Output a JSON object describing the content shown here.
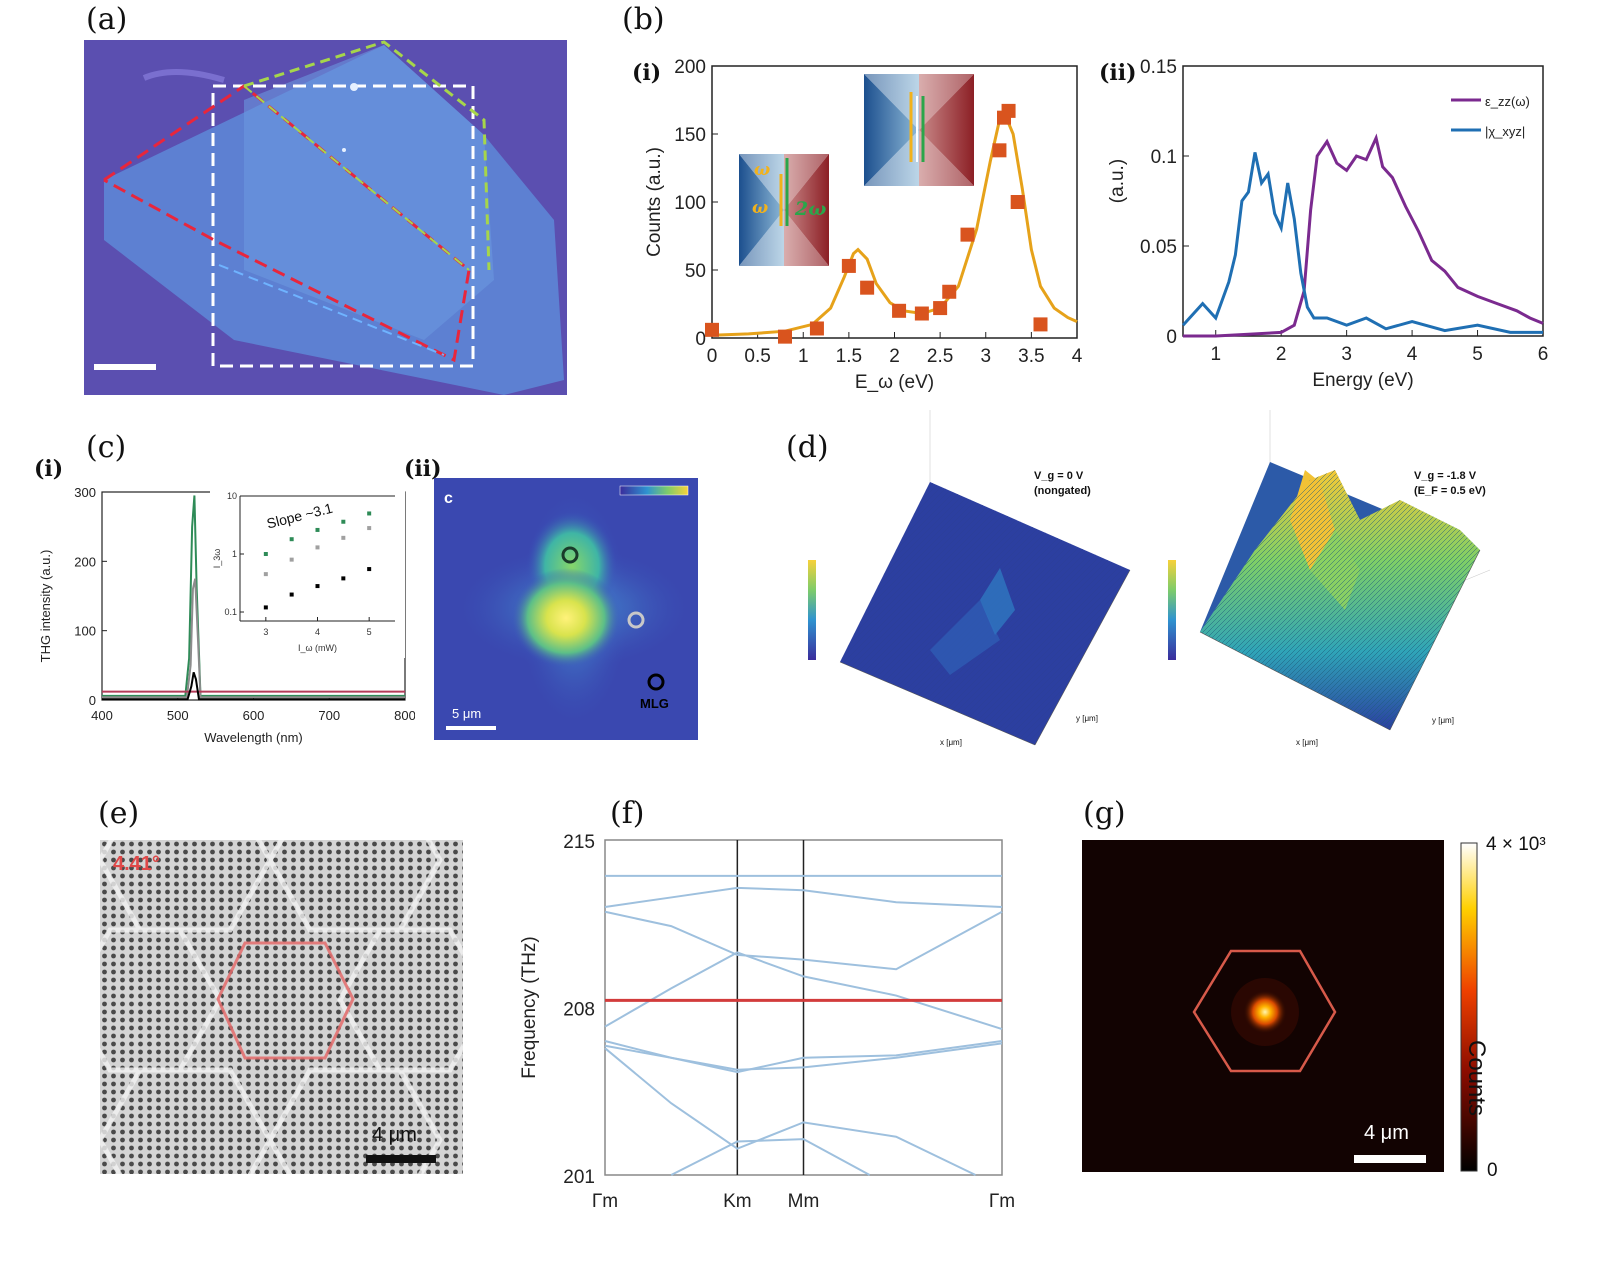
{
  "panels": {
    "a": {
      "label": "(a)"
    },
    "b": {
      "label": "(b)",
      "i_label": "(i)",
      "ii_label": "(ii)",
      "inset_omega": "ω",
      "inset_omega2": "ω",
      "inset_2omega": "2ω"
    },
    "c": {
      "label": "(c)",
      "i_label": "(i)",
      "ii_label": "(ii)",
      "inset_slope": "Slope ~3.1",
      "inset_xlabel": "I_ω (mW)",
      "inset_ylabel": "I_3ω",
      "map_letter": "c",
      "map_mlg": "MLG",
      "map_scalebar": "5 μm"
    },
    "d": {
      "label": "(d)",
      "left_annot_1": "V_g = 0 V",
      "left_annot_2": "(nongated)",
      "right_annot_1": "V_g = -1.8 V",
      "right_annot_2": "(E_F = 0.5 eV)",
      "axis_label_x": "x [μm]",
      "axis_label_y": "y [μm]"
    },
    "e": {
      "label": "(e)",
      "angle": "4.41°",
      "scalebar": "4 μm"
    },
    "f": {
      "label": "(f)"
    },
    "g": {
      "label": "(g)",
      "scalebar": "4 μm",
      "colorbar_max": "4 × 10³",
      "colorbar_min": "0",
      "colorbar_label": "Counts"
    }
  },
  "chart_data": [
    {
      "id": "b-i",
      "type": "scatter",
      "xlabel": "E_ω (eV)",
      "ylabel": "Counts (a.u.)",
      "xlim": [
        0,
        4
      ],
      "ylim": [
        0,
        200
      ],
      "xticks": [
        0,
        0.5,
        1,
        1.5,
        2,
        2.5,
        3,
        3.5,
        4
      ],
      "yticks": [
        0,
        50,
        100,
        150,
        200
      ],
      "colors": {
        "points": "#d9541e",
        "fit": "#e6a21a"
      },
      "points": [
        [
          0.0,
          6
        ],
        [
          0.8,
          1
        ],
        [
          1.15,
          7
        ],
        [
          1.5,
          53
        ],
        [
          1.7,
          37
        ],
        [
          2.05,
          20
        ],
        [
          2.3,
          18
        ],
        [
          2.5,
          22
        ],
        [
          2.6,
          34
        ],
        [
          2.8,
          76
        ],
        [
          3.15,
          138
        ],
        [
          3.2,
          162
        ],
        [
          3.25,
          167
        ],
        [
          3.35,
          100
        ],
        [
          3.6,
          10
        ]
      ],
      "fit": [
        [
          0.0,
          2
        ],
        [
          0.4,
          3
        ],
        [
          0.8,
          5
        ],
        [
          1.1,
          10
        ],
        [
          1.3,
          22
        ],
        [
          1.45,
          45
        ],
        [
          1.55,
          62
        ],
        [
          1.6,
          65
        ],
        [
          1.7,
          58
        ],
        [
          1.8,
          40
        ],
        [
          1.95,
          26
        ],
        [
          2.1,
          20
        ],
        [
          2.3,
          18
        ],
        [
          2.5,
          22
        ],
        [
          2.7,
          38
        ],
        [
          2.9,
          80
        ],
        [
          3.05,
          130
        ],
        [
          3.15,
          160
        ],
        [
          3.2,
          166
        ],
        [
          3.3,
          150
        ],
        [
          3.4,
          110
        ],
        [
          3.5,
          65
        ],
        [
          3.6,
          38
        ],
        [
          3.75,
          22
        ],
        [
          3.9,
          15
        ],
        [
          4.0,
          12
        ]
      ]
    },
    {
      "id": "b-ii",
      "type": "line",
      "xlabel": "Energy (eV)",
      "ylabel": "(a.u.)",
      "xlim": [
        0.5,
        6
      ],
      "ylim": [
        0,
        0.15
      ],
      "xticks": [
        1,
        2,
        3,
        4,
        5,
        6
      ],
      "yticks": [
        0,
        0.05,
        0.1,
        0.15
      ],
      "yticklabels": [
        "0",
        "0.05",
        "0.1",
        "0.15"
      ],
      "legend_position": "top-right",
      "series": [
        {
          "name": "ε_zz(ω)",
          "color": "#7b2a8f",
          "x": [
            0.5,
            1.0,
            1.5,
            2.0,
            2.2,
            2.35,
            2.45,
            2.55,
            2.7,
            2.85,
            3.0,
            3.15,
            3.3,
            3.45,
            3.55,
            3.7,
            3.9,
            4.1,
            4.3,
            4.5,
            4.7,
            5.0,
            5.3,
            5.6,
            5.8,
            6.0
          ],
          "y": [
            0.0,
            0.0,
            0.001,
            0.002,
            0.006,
            0.025,
            0.07,
            0.1,
            0.108,
            0.096,
            0.092,
            0.1,
            0.098,
            0.11,
            0.094,
            0.088,
            0.072,
            0.058,
            0.042,
            0.036,
            0.027,
            0.022,
            0.018,
            0.014,
            0.01,
            0.007
          ]
        },
        {
          "name": "|χ_xyz|",
          "color": "#1f6fb3",
          "x": [
            0.5,
            0.8,
            1.0,
            1.1,
            1.2,
            1.3,
            1.4,
            1.5,
            1.6,
            1.7,
            1.8,
            1.9,
            2.0,
            2.1,
            2.2,
            2.3,
            2.4,
            2.5,
            2.7,
            3.0,
            3.3,
            3.6,
            4.0,
            4.5,
            5.0,
            5.5,
            6.0
          ],
          "y": [
            0.006,
            0.018,
            0.01,
            0.02,
            0.03,
            0.045,
            0.075,
            0.08,
            0.102,
            0.085,
            0.09,
            0.068,
            0.06,
            0.085,
            0.065,
            0.035,
            0.016,
            0.01,
            0.01,
            0.006,
            0.01,
            0.004,
            0.008,
            0.003,
            0.006,
            0.002,
            0.002
          ]
        }
      ]
    },
    {
      "id": "c-i",
      "type": "line",
      "xlabel": "Wavelength (nm)",
      "ylabel": "THG intensity (a.u.)",
      "xlim": [
        400,
        800
      ],
      "ylim": [
        0,
        300
      ],
      "xticks": [
        400,
        500,
        600,
        700,
        800
      ],
      "yticks": [
        0,
        100,
        200,
        300
      ],
      "series": [
        {
          "color": "#2e8b57",
          "x": [
            400,
            510,
            515,
            519,
            522,
            525,
            530,
            800
          ],
          "y": [
            6,
            6,
            60,
            250,
            295,
            160,
            6,
            6
          ]
        },
        {
          "color": "#8c8c8c",
          "x": [
            400,
            512,
            517,
            520,
            523,
            527,
            530,
            800
          ],
          "y": [
            4,
            4,
            50,
            160,
            175,
            80,
            4,
            4
          ]
        },
        {
          "color": "#b43b59",
          "x": [
            400,
            800
          ],
          "y": [
            12,
            12
          ]
        },
        {
          "color": "#000000",
          "x": [
            400,
            513,
            518,
            521,
            524,
            528,
            800
          ],
          "y": [
            1,
            1,
            20,
            40,
            30,
            1,
            1
          ]
        }
      ]
    },
    {
      "id": "c-i-inset",
      "type": "scatter",
      "xlim": [
        2.5,
        5.5
      ],
      "ylim": [
        0.07,
        10
      ],
      "log_y": true,
      "xticks": [
        3,
        4,
        5
      ],
      "yticks": [
        0.1,
        1,
        10
      ],
      "series": [
        {
          "color": "#2e8b57",
          "x": [
            3.0,
            3.5,
            4.0,
            4.5,
            5.0
          ],
          "y": [
            1.0,
            1.8,
            2.6,
            3.6,
            5.0
          ]
        },
        {
          "color": "#a0a0a0",
          "x": [
            3.0,
            3.5,
            4.0,
            4.5,
            5.0
          ],
          "y": [
            0.45,
            0.8,
            1.3,
            1.9,
            2.8
          ]
        },
        {
          "color": "#000000",
          "x": [
            3.0,
            3.5,
            4.0,
            4.5,
            5.0
          ],
          "y": [
            0.12,
            0.2,
            0.28,
            0.38,
            0.55
          ]
        }
      ]
    },
    {
      "id": "f",
      "type": "line",
      "ylabel": "Frequency (THz)",
      "ylim": [
        201,
        215
      ],
      "yticks": [
        201,
        208,
        215
      ],
      "xticklabels": [
        "Γm",
        "Km",
        "Mm",
        "Γm"
      ],
      "series": [
        {
          "color": "#9ec0de",
          "x": [
            0,
            1,
            1.5,
            3
          ],
          "y": [
            213.5,
            213.5,
            213.5,
            213.5
          ]
        },
        {
          "color": "#9ec0de",
          "x": [
            0,
            0.5,
            1,
            1.5,
            2.2,
            3
          ],
          "y": [
            212.2,
            212.6,
            213.0,
            212.9,
            212.4,
            212.2
          ]
        },
        {
          "color": "#9ec0de",
          "x": [
            0,
            0.5,
            1,
            1.5,
            2.2,
            3
          ],
          "y": [
            207.2,
            208.8,
            210.3,
            209.3,
            208.5,
            207.1
          ]
        },
        {
          "color": "#9ec0de",
          "x": [
            0,
            0.5,
            1,
            1.5,
            2.2,
            3
          ],
          "y": [
            212.0,
            211.4,
            210.2,
            210.0,
            209.6,
            212.0
          ]
        },
        {
          "color": "#d23b3b",
          "x": [
            0,
            3
          ],
          "y": [
            208.3,
            208.3
          ]
        },
        {
          "color": "#9ec0de",
          "x": [
            0,
            0.5,
            1,
            1.5,
            2.2,
            3
          ],
          "y": [
            206.6,
            205.9,
            205.3,
            205.9,
            206.0,
            206.6
          ]
        },
        {
          "color": "#9ec0de",
          "x": [
            0,
            1,
            1.5,
            2.2,
            3
          ],
          "y": [
            206.4,
            205.4,
            205.5,
            205.9,
            206.5
          ]
        },
        {
          "color": "#9ec0de",
          "x": [
            0,
            0.5,
            1,
            1.5,
            2.2,
            2.8
          ],
          "y": [
            206.3,
            204.0,
            202.1,
            203.2,
            202.6,
            201.0
          ]
        },
        {
          "color": "#9ec0de",
          "x": [
            0.5,
            1,
            1.5,
            2.0
          ],
          "y": [
            201.0,
            202.4,
            202.5,
            201.0
          ]
        }
      ]
    }
  ]
}
